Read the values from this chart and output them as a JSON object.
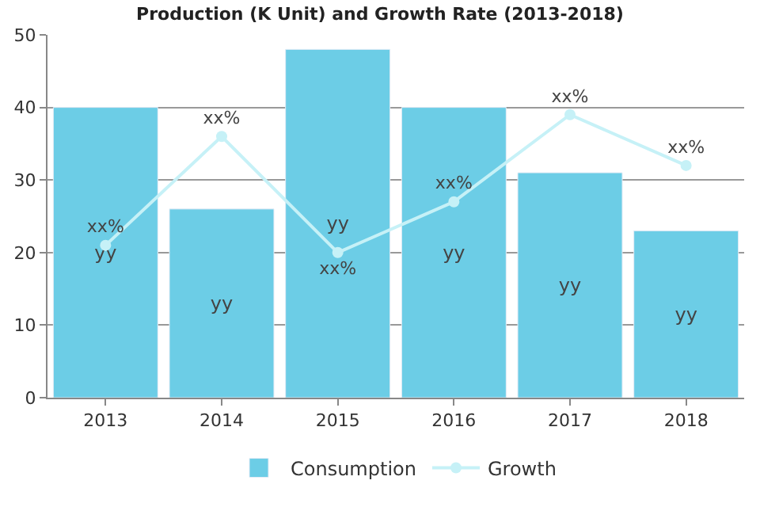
{
  "chart_data": {
    "type": "bar",
    "title": "Production (K Unit) and Growth Rate (2013-2018)",
    "categories": [
      "2013",
      "2014",
      "2015",
      "2016",
      "2017",
      "2018"
    ],
    "series": [
      {
        "name": "Consumption",
        "color": "#6ccde6",
        "values": [
          40,
          26,
          48,
          40,
          31,
          23
        ],
        "value_labels": [
          "yy",
          "yy",
          "yy",
          "yy",
          "yy",
          "yy"
        ]
      },
      {
        "name": "Growth",
        "type": "line",
        "color": "#c6f1f7",
        "marker": "circle",
        "values": [
          21,
          36,
          20,
          27,
          39,
          32
        ],
        "value_labels": [
          "xx%",
          "xx%",
          "xx%",
          "xx%",
          "xx%",
          "xx%"
        ]
      }
    ],
    "ylim": [
      0,
      50
    ],
    "yticks": [
      0,
      10,
      20,
      30,
      40,
      50
    ],
    "grid": "y",
    "legend": "bottom"
  }
}
